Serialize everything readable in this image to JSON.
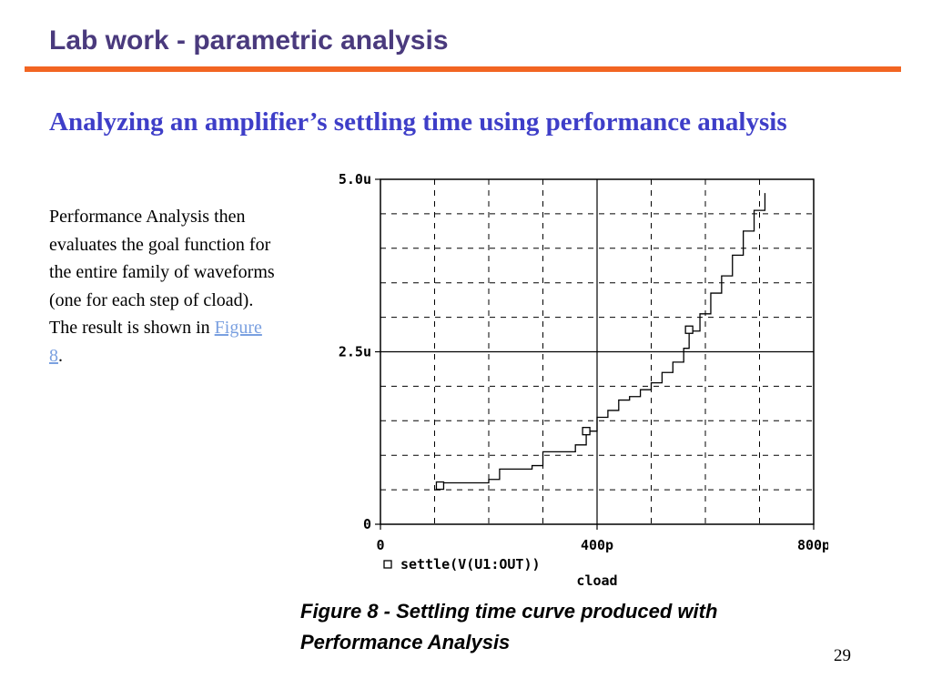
{
  "slide": {
    "title": "Lab work - parametric analysis",
    "subtitle": "Analyzing an amplifier’s settling time using performance analysis",
    "body_before_link": "Performance Analysis then evaluates the goal function for the entire family of waveforms (one for each step of cload). The result is shown in ",
    "body_link": "Figure 8",
    "body_after_link": ".",
    "caption_line1": "Figure 8 - Settling time curve produced with",
    "caption_line2": "Performance Analysis",
    "page_number": "29",
    "colors": {
      "title": "#4a3a7d",
      "rule": "#f26522",
      "subtitle": "#3e3ec8",
      "link": "#7aa0e0"
    }
  },
  "chart_data": {
    "type": "line",
    "xlabel": "cload",
    "ylabel": "",
    "x_tick_labels": [
      "0",
      "400p",
      "800p"
    ],
    "y_tick_labels": [
      "0",
      "2.5u",
      "5.0u"
    ],
    "xlim": [
      0,
      8e-10
    ],
    "ylim": [
      0,
      5e-06
    ],
    "x_minor_gridlines": 8,
    "y_minor_gridlines": 10,
    "grid": true,
    "legend_position": "bottom-left",
    "series": [
      {
        "name": "settle(V(U1:OUT))",
        "marker": "square",
        "x": [
          1e-10,
          1.1e-10,
          2e-10,
          2.2e-10,
          2.8e-10,
          3e-10,
          3.6e-10,
          3.8e-10,
          4e-10,
          4.2e-10,
          4.4e-10,
          4.6e-10,
          4.8e-10,
          5e-10,
          5.2e-10,
          5.4e-10,
          5.6e-10,
          5.7e-10,
          5.9e-10,
          6.1e-10,
          6.3e-10,
          6.5e-10,
          6.7e-10,
          6.9e-10,
          7.1e-10
        ],
        "y": [
          5e-07,
          6e-07,
          6.5e-07,
          8e-07,
          8.5e-07,
          1.05e-06,
          1.15e-06,
          1.35e-06,
          1.55e-06,
          1.65e-06,
          1.8e-06,
          1.85e-06,
          1.95e-06,
          2.05e-06,
          2.2e-06,
          2.35e-06,
          2.55e-06,
          2.8e-06,
          3.05e-06,
          3.35e-06,
          3.6e-06,
          3.9e-06,
          4.25e-06,
          4.55e-06,
          4.8e-06
        ],
        "marker_x": [
          1.1e-10,
          3.8e-10,
          5.7e-10
        ],
        "marker_y": [
          5.6e-07,
          1.35e-06,
          2.82e-06
        ]
      }
    ]
  }
}
